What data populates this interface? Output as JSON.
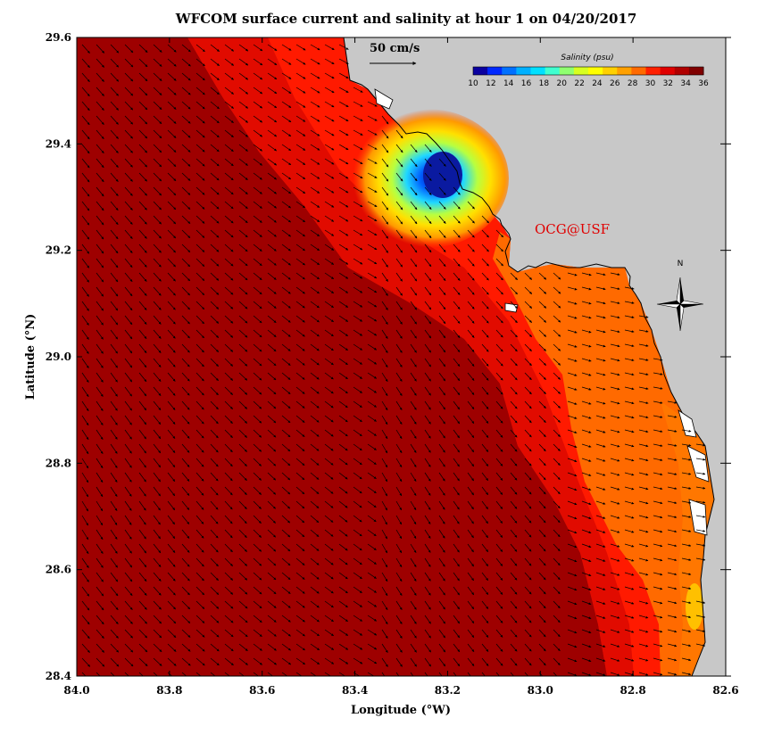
{
  "title": "WFCOM surface current and salinity at hour 1 on 04/20/2017",
  "x_axis": {
    "label": "Longitude (°W)",
    "ticks": [
      "84.0",
      "83.8",
      "83.6",
      "83.4",
      "83.2",
      "83.0",
      "82.8",
      "82.6"
    ],
    "range": [
      84.0,
      82.6
    ]
  },
  "y_axis": {
    "label": "Latitude (°N)",
    "ticks": [
      "29.6",
      "29.4",
      "29.2",
      "29.0",
      "28.8",
      "28.6",
      "28.4"
    ],
    "range": [
      28.4,
      29.6
    ]
  },
  "scale_arrow": {
    "label": "50 cm/s",
    "value_cm_s": 50
  },
  "colorbar": {
    "title": "Salinity (psu)",
    "labels": [
      "10",
      "12",
      "14",
      "16",
      "18",
      "20",
      "22",
      "24",
      "26",
      "28",
      "30",
      "32",
      "34",
      "36"
    ],
    "range": [
      10,
      36
    ],
    "colors": [
      "#0a00a0",
      "#0028ff",
      "#0070ff",
      "#00b0ff",
      "#00e0ff",
      "#40ffd0",
      "#90ff70",
      "#d8ff20",
      "#ffff00",
      "#ffd000",
      "#ffa000",
      "#ff6a00",
      "#ff2000",
      "#e00000",
      "#b00000",
      "#800000"
    ]
  },
  "north_arrow": {
    "label": "N"
  },
  "credit": "OCG@USF",
  "colors": {
    "land": "#c8c8c8",
    "coast": "#000000",
    "arrow": "#000000"
  }
}
